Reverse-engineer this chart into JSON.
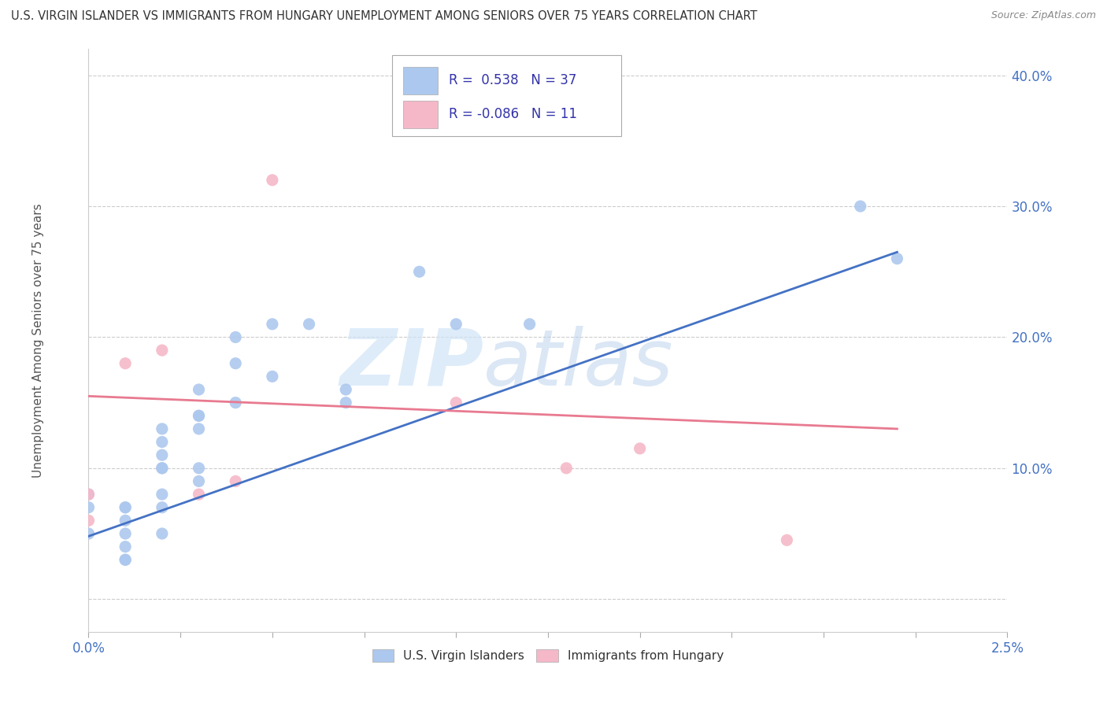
{
  "title": "U.S. VIRGIN ISLANDER VS IMMIGRANTS FROM HUNGARY UNEMPLOYMENT AMONG SENIORS OVER 75 YEARS CORRELATION CHART",
  "source": "Source: ZipAtlas.com",
  "ylabel": "Unemployment Among Seniors over 75 years",
  "xmin": 0.0,
  "xmax": 0.025,
  "ymin": -0.025,
  "ymax": 0.42,
  "blue_R": 0.538,
  "blue_N": 37,
  "pink_R": -0.086,
  "pink_N": 11,
  "blue_color": "#adc8ee",
  "pink_color": "#f5b8c8",
  "blue_line_color": "#4472C4",
  "pink_line_color": "#e87a90",
  "legend_label_blue": "U.S. Virgin Islanders",
  "legend_label_pink": "Immigrants from Hungary",
  "blue_scatter_x": [
    0.0,
    0.0,
    0.0,
    0.001,
    0.001,
    0.001,
    0.001,
    0.001,
    0.001,
    0.001,
    0.002,
    0.002,
    0.002,
    0.002,
    0.002,
    0.002,
    0.002,
    0.002,
    0.003,
    0.003,
    0.003,
    0.003,
    0.003,
    0.003,
    0.004,
    0.004,
    0.004,
    0.005,
    0.005,
    0.006,
    0.007,
    0.007,
    0.009,
    0.01,
    0.012,
    0.021,
    0.022
  ],
  "blue_scatter_y": [
    0.08,
    0.05,
    0.07,
    0.07,
    0.06,
    0.05,
    0.04,
    0.03,
    0.03,
    0.07,
    0.13,
    0.11,
    0.1,
    0.12,
    0.1,
    0.08,
    0.07,
    0.05,
    0.14,
    0.16,
    0.14,
    0.13,
    0.1,
    0.09,
    0.18,
    0.15,
    0.2,
    0.21,
    0.17,
    0.21,
    0.15,
    0.16,
    0.25,
    0.21,
    0.21,
    0.3,
    0.26
  ],
  "pink_scatter_x": [
    0.0,
    0.0,
    0.001,
    0.002,
    0.003,
    0.004,
    0.005,
    0.01,
    0.013,
    0.015,
    0.019
  ],
  "pink_scatter_y": [
    0.08,
    0.06,
    0.18,
    0.19,
    0.08,
    0.09,
    0.32,
    0.15,
    0.1,
    0.115,
    0.045
  ],
  "blue_line_x": [
    0.0,
    0.022
  ],
  "blue_line_y": [
    0.048,
    0.265
  ],
  "pink_line_x": [
    0.0,
    0.022
  ],
  "pink_line_y": [
    0.155,
    0.13
  ]
}
